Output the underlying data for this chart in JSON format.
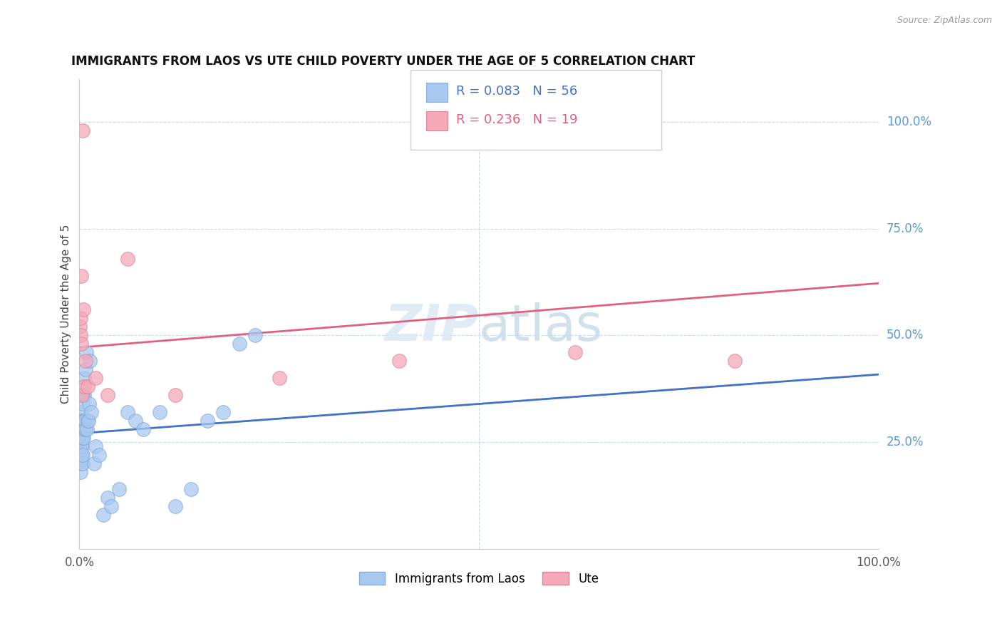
{
  "title": "IMMIGRANTS FROM LAOS VS UTE CHILD POVERTY UNDER THE AGE OF 5 CORRELATION CHART",
  "source": "Source: ZipAtlas.com",
  "ylabel": "Child Poverty Under the Age of 5",
  "legend_label_1": "Immigrants from Laos",
  "legend_label_2": "Ute",
  "R1": 0.083,
  "N1": 56,
  "R2": 0.236,
  "N2": 19,
  "color1": "#a8c8f0",
  "color2": "#f5a8b8",
  "trendline1_color": "#4472c4",
  "trendline2_color": "#e06080",
  "dashed_color": "#88b8e8",
  "right_tick_color": "#5599dd",
  "background_color": "#ffffff",
  "grid_color": "#c8d8ec",
  "watermark_zip": "ZIP",
  "watermark_atlas": "atlas",
  "blue_dots_x": [
    0.05,
    0.08,
    0.1,
    0.12,
    0.15,
    0.15,
    0.18,
    0.2,
    0.22,
    0.25,
    0.25,
    0.28,
    0.3,
    0.3,
    0.32,
    0.35,
    0.35,
    0.38,
    0.4,
    0.4,
    0.42,
    0.45,
    0.45,
    0.48,
    0.5,
    0.55,
    0.55,
    0.6,
    0.65,
    0.7,
    0.75,
    0.8,
    0.85,
    0.9,
    1.0,
    1.1,
    1.2,
    1.3,
    1.5,
    1.8,
    2.0,
    2.5,
    3.0,
    3.5,
    4.0,
    5.0,
    6.0,
    7.0,
    8.0,
    10.0,
    12.0,
    14.0,
    16.0,
    18.0,
    20.0,
    22.0
  ],
  "blue_dots_y": [
    28.0,
    24.0,
    20.0,
    30.0,
    18.0,
    22.0,
    26.0,
    24.0,
    32.0,
    22.0,
    28.0,
    20.0,
    26.0,
    30.0,
    22.0,
    24.0,
    28.0,
    34.0,
    20.0,
    22.0,
    26.0,
    36.0,
    28.0,
    30.0,
    26.0,
    30.0,
    40.0,
    36.0,
    28.0,
    30.0,
    42.0,
    28.0,
    46.0,
    28.0,
    30.0,
    30.0,
    34.0,
    44.0,
    32.0,
    20.0,
    24.0,
    22.0,
    8.0,
    12.0,
    10.0,
    14.0,
    32.0,
    30.0,
    28.0,
    32.0,
    10.0,
    14.0,
    30.0,
    32.0,
    48.0,
    50.0
  ],
  "pink_dots_x": [
    0.08,
    0.12,
    0.15,
    0.2,
    0.25,
    0.3,
    0.4,
    0.5,
    0.6,
    0.8,
    1.0,
    2.0,
    3.5,
    6.0,
    12.0,
    25.0,
    40.0,
    62.0,
    82.0
  ],
  "pink_dots_y": [
    52.0,
    50.0,
    54.0,
    48.0,
    64.0,
    36.0,
    98.0,
    56.0,
    38.0,
    44.0,
    38.0,
    40.0,
    36.0,
    68.0,
    36.0,
    40.0,
    44.0,
    46.0,
    44.0
  ],
  "xlim": [
    0,
    100
  ],
  "ylim": [
    0,
    110
  ],
  "yticks": [
    25,
    50,
    75,
    100
  ],
  "ytick_labels": [
    "25.0%",
    "50.0%",
    "75.0%",
    "100.0%"
  ],
  "xtick_labels": [
    "0.0%",
    "100.0%"
  ]
}
